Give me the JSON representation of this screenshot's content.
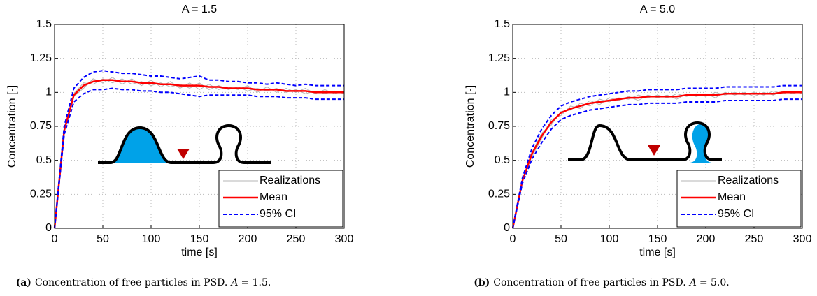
{
  "chart_data": [
    {
      "type": "line",
      "title": "A = 1.5",
      "xlabel": "time [s]",
      "ylabel": "Concentration [-]",
      "x": [
        0,
        10,
        20,
        30,
        40,
        50,
        60,
        70,
        80,
        90,
        100,
        110,
        120,
        130,
        140,
        150,
        160,
        170,
        180,
        190,
        200,
        210,
        220,
        230,
        240,
        250,
        260,
        270,
        280,
        290,
        300
      ],
      "xlim": [
        0,
        300
      ],
      "xticks": [
        0,
        50,
        100,
        150,
        200,
        250,
        300
      ],
      "ylim": [
        0,
        1.5
      ],
      "yticks": [
        0,
        0.25,
        0.5,
        0.75,
        1,
        1.25,
        1.5
      ],
      "grid": true,
      "legend": "lower right",
      "series": [
        {
          "name": "Realizations",
          "color": "#b4b4b4",
          "values": [
            [
              0,
              0.7,
              0.99,
              1.07,
              1.06,
              1.1,
              1.07,
              1.1,
              1.06,
              1.08,
              1.05,
              1.07,
              1.04,
              1.06,
              1.03,
              1.07,
              1.02,
              1.05,
              1.02,
              1.04,
              1.01,
              1.03,
              1.01,
              1.03,
              1.0,
              1.02,
              0.99,
              1.01,
              0.99,
              1.01,
              0.99
            ],
            [
              0,
              0.74,
              0.97,
              1.03,
              1.1,
              1.07,
              1.11,
              1.06,
              1.1,
              1.05,
              1.09,
              1.04,
              1.08,
              1.03,
              1.07,
              1.02,
              1.06,
              1.02,
              1.04,
              1.02,
              1.05,
              1.0,
              1.04,
              1.0,
              1.03,
              1.0,
              1.03,
              0.99,
              1.02,
              0.99,
              1.01
            ]
          ]
        },
        {
          "name": "Mean",
          "color": "#ff0000",
          "values": [
            0,
            0.72,
            0.98,
            1.05,
            1.08,
            1.09,
            1.09,
            1.08,
            1.08,
            1.07,
            1.07,
            1.06,
            1.06,
            1.05,
            1.05,
            1.05,
            1.04,
            1.04,
            1.03,
            1.03,
            1.03,
            1.02,
            1.02,
            1.02,
            1.01,
            1.01,
            1.01,
            1.0,
            1.0,
            1.0,
            1.0
          ]
        },
        {
          "name": "95% CI",
          "color": "#0000ff",
          "upper": [
            0,
            0.75,
            1.03,
            1.11,
            1.15,
            1.16,
            1.15,
            1.14,
            1.14,
            1.13,
            1.12,
            1.12,
            1.11,
            1.1,
            1.11,
            1.12,
            1.09,
            1.09,
            1.08,
            1.08,
            1.07,
            1.07,
            1.06,
            1.07,
            1.06,
            1.05,
            1.06,
            1.05,
            1.05,
            1.05,
            1.05
          ],
          "lower": [
            0,
            0.69,
            0.93,
            0.99,
            1.02,
            1.02,
            1.03,
            1.02,
            1.02,
            1.01,
            1.01,
            1.0,
            1.0,
            0.99,
            0.98,
            0.97,
            0.98,
            0.98,
            0.98,
            0.98,
            0.98,
            0.97,
            0.97,
            0.97,
            0.96,
            0.96,
            0.96,
            0.95,
            0.95,
            0.95,
            0.95
          ]
        }
      ],
      "caption": {
        "label": "(a)",
        "text": "Concentration of free particles in PSD.",
        "var": "A",
        "rest": "= 1.5."
      }
    },
    {
      "type": "line",
      "title": "A = 5.0",
      "xlabel": "time [s]",
      "ylabel": "Concentration [-]",
      "x": [
        0,
        10,
        20,
        30,
        40,
        50,
        60,
        70,
        80,
        90,
        100,
        110,
        120,
        130,
        140,
        150,
        160,
        170,
        180,
        190,
        200,
        210,
        220,
        230,
        240,
        250,
        260,
        270,
        280,
        290,
        300
      ],
      "xlim": [
        0,
        300
      ],
      "xticks": [
        0,
        50,
        100,
        150,
        200,
        250,
        300
      ],
      "ylim": [
        0,
        1.5
      ],
      "yticks": [
        0,
        0.25,
        0.5,
        0.75,
        1,
        1.25,
        1.5
      ],
      "grid": true,
      "legend": "lower right",
      "series": [
        {
          "name": "Realizations",
          "color": "#b4b4b4",
          "values": [
            [
              0,
              0.34,
              0.56,
              0.7,
              0.76,
              0.86,
              0.87,
              0.92,
              0.9,
              0.95,
              0.93,
              0.96,
              0.95,
              0.98,
              0.96,
              0.98,
              0.96,
              0.99,
              0.97,
              0.99,
              0.97,
              1.0,
              0.98,
              1.0,
              0.98,
              1.0,
              0.98,
              1.01,
              0.99,
              1.01,
              0.99
            ],
            [
              0,
              0.36,
              0.53,
              0.66,
              0.8,
              0.83,
              0.9,
              0.88,
              0.94,
              0.91,
              0.96,
              0.94,
              0.97,
              0.94,
              0.98,
              0.96,
              0.98,
              0.95,
              0.99,
              0.97,
              0.99,
              0.96,
              1.0,
              0.98,
              1.0,
              0.97,
              1.0,
              0.98,
              1.01,
              0.99,
              1.01
            ]
          ]
        },
        {
          "name": "Mean",
          "color": "#ff0000",
          "values": [
            0,
            0.35,
            0.55,
            0.68,
            0.78,
            0.85,
            0.88,
            0.9,
            0.92,
            0.93,
            0.94,
            0.95,
            0.96,
            0.96,
            0.97,
            0.97,
            0.97,
            0.97,
            0.98,
            0.98,
            0.98,
            0.98,
            0.99,
            0.99,
            0.99,
            0.99,
            0.99,
            0.99,
            1.0,
            1.0,
            1.0
          ]
        },
        {
          "name": "95% CI",
          "color": "#0000ff",
          "upper": [
            0,
            0.37,
            0.59,
            0.73,
            0.83,
            0.9,
            0.93,
            0.95,
            0.97,
            0.98,
            0.99,
            1.0,
            1.01,
            1.01,
            1.02,
            1.02,
            1.02,
            1.02,
            1.03,
            1.03,
            1.03,
            1.03,
            1.04,
            1.04,
            1.04,
            1.04,
            1.04,
            1.04,
            1.05,
            1.05,
            1.05
          ],
          "lower": [
            0,
            0.33,
            0.51,
            0.63,
            0.73,
            0.8,
            0.83,
            0.85,
            0.87,
            0.88,
            0.89,
            0.9,
            0.91,
            0.91,
            0.92,
            0.92,
            0.92,
            0.92,
            0.93,
            0.93,
            0.93,
            0.93,
            0.94,
            0.94,
            0.94,
            0.94,
            0.94,
            0.94,
            0.95,
            0.95,
            0.95
          ]
        }
      ],
      "caption": {
        "label": "(b)",
        "text": "Concentration of free particles in PSD.",
        "var": "A",
        "rest": "= 5.0."
      }
    }
  ]
}
